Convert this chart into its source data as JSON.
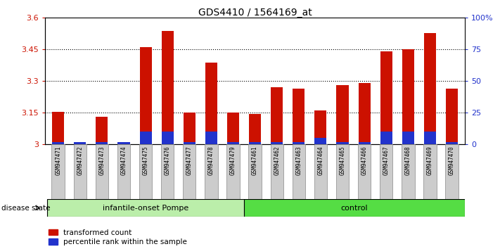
{
  "title": "GDS4410 / 1564169_at",
  "samples": [
    "GSM947471",
    "GSM947472",
    "GSM947473",
    "GSM947474",
    "GSM947475",
    "GSM947476",
    "GSM947477",
    "GSM947478",
    "GSM947479",
    "GSM947461",
    "GSM947462",
    "GSM947463",
    "GSM947464",
    "GSM947465",
    "GSM947466",
    "GSM947467",
    "GSM947468",
    "GSM947469",
    "GSM947470"
  ],
  "red_values": [
    3.155,
    3.005,
    3.13,
    3.005,
    3.46,
    3.535,
    3.15,
    3.385,
    3.15,
    3.145,
    3.27,
    3.265,
    3.16,
    3.28,
    3.29,
    3.44,
    3.45,
    3.525,
    3.265
  ],
  "blue_percentile": [
    2,
    2,
    2,
    2,
    10,
    10,
    2,
    10,
    2,
    2,
    2,
    2,
    5,
    2,
    2,
    10,
    10,
    10,
    2
  ],
  "group1_label": "infantile-onset Pompe",
  "group2_label": "control",
  "group1_count": 9,
  "group2_count": 10,
  "ylim_left": [
    3.0,
    3.6
  ],
  "yticks_left": [
    3.0,
    3.15,
    3.3,
    3.45,
    3.6
  ],
  "ytick_labels_left": [
    "3",
    "3.15",
    "3.3",
    "3.45",
    "3.6"
  ],
  "yticks_right": [
    0,
    25,
    50,
    75,
    100
  ],
  "ytick_labels_right": [
    "0",
    "25",
    "50",
    "75",
    "100%"
  ],
  "bar_width": 0.55,
  "red_color": "#cc1100",
  "blue_color": "#2233cc",
  "group1_bg": "#bbeeaa",
  "group2_bg": "#55dd44",
  "sample_bg": "#cccccc",
  "legend_red": "transformed count",
  "legend_blue": "percentile rank within the sample",
  "disease_state_label": "disease state"
}
